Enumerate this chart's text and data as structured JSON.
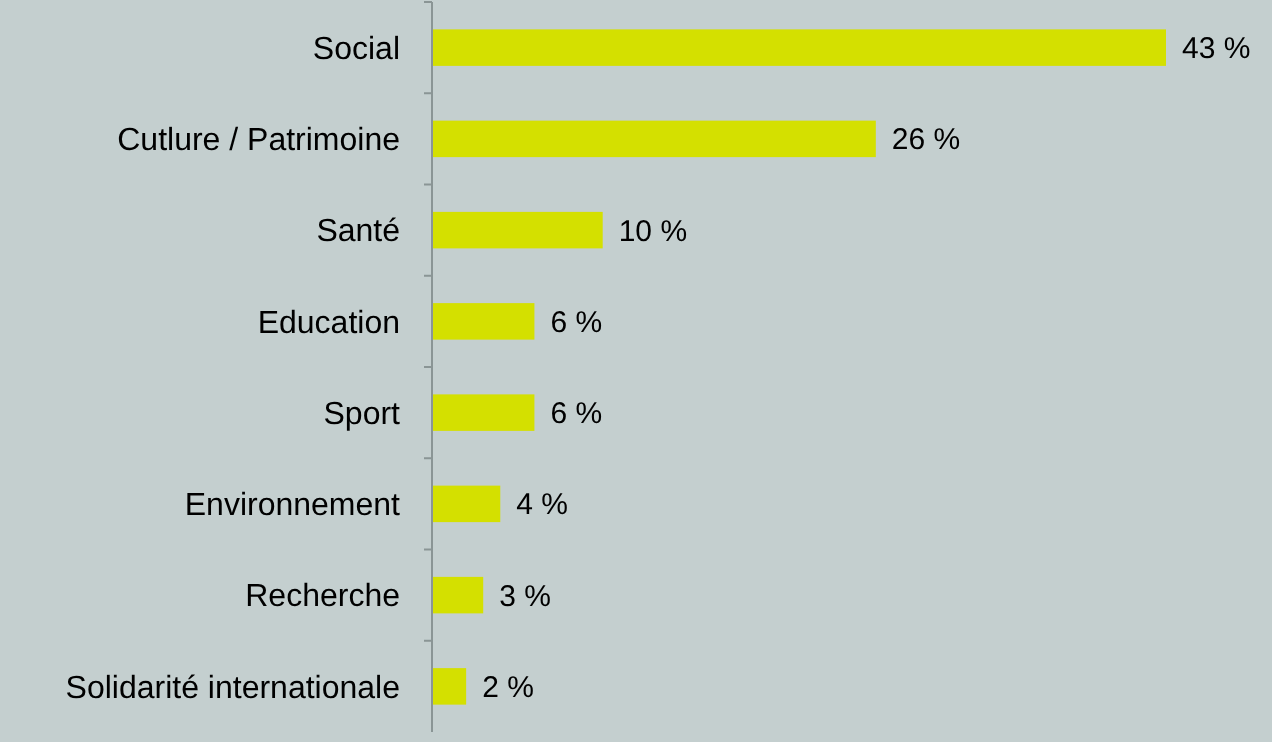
{
  "chart_data": {
    "type": "bar",
    "orientation": "horizontal",
    "categories": [
      "Social",
      "Cutlure / Patrimoine",
      "Santé",
      "Education",
      "Sport",
      "Environnement",
      "Recherche",
      "Solidarité internationale"
    ],
    "values": [
      43,
      26,
      10,
      6,
      6,
      4,
      3,
      2
    ],
    "value_labels": [
      "43 %",
      "26 %",
      "10 %",
      "6 %",
      "6 %",
      "4 %",
      "3 %",
      "2 %"
    ],
    "color": "#d4e000"
  }
}
